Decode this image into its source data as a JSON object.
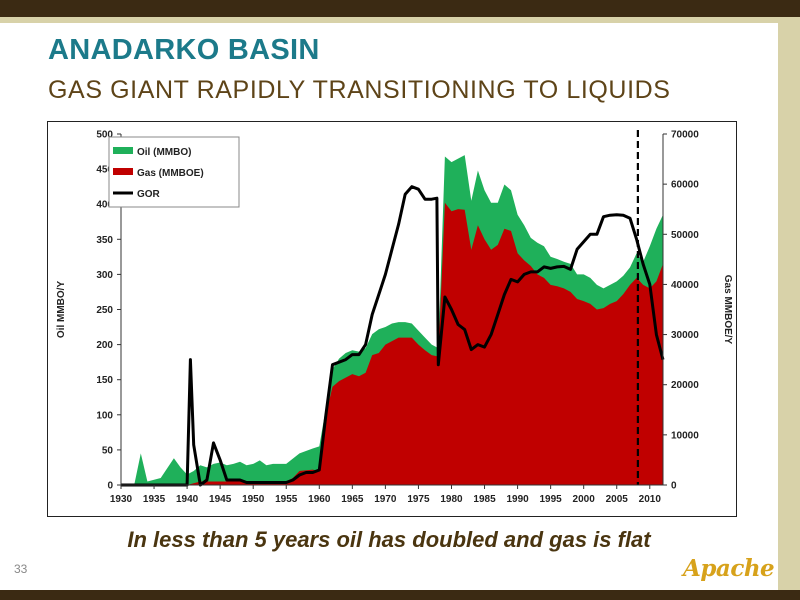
{
  "slide": {
    "title": "ANADARKO BASIN",
    "subtitle": "GAS GIANT RAPIDLY TRANSITIONING TO LIQUIDS",
    "caption": "In less than 5 years oil has doubled and gas is flat",
    "page_number": "33",
    "logo_text": "Apache"
  },
  "colors": {
    "title": "#1c7a8a",
    "subtitle": "#5e4418",
    "oil": "#1fb05a",
    "gas": "#c00000",
    "gor": "#000000",
    "dark_bar": "#3b2a13",
    "light_band": "#d8d2a9",
    "logo": "#d7a21b"
  },
  "chart_data": {
    "type": "area",
    "ylabel": "Oil MMBO/Y",
    "y2label": "Gas MMBOE/Y",
    "xlim": [
      1930,
      2012
    ],
    "ylim": [
      0,
      500
    ],
    "y2lim": [
      0,
      70000
    ],
    "xticks": [
      1930,
      1935,
      1940,
      1945,
      1950,
      1955,
      1960,
      1965,
      1970,
      1975,
      1980,
      1985,
      1990,
      1995,
      2000,
      2005,
      2010
    ],
    "yticks": [
      0,
      50,
      100,
      150,
      200,
      250,
      300,
      350,
      400,
      450,
      500
    ],
    "y2ticks": [
      0,
      10000,
      20000,
      30000,
      40000,
      50000,
      60000,
      70000
    ],
    "legend_position": "top-left",
    "grid": false,
    "vertical_marker": {
      "x": 2008.2,
      "style": "dashed"
    },
    "series": [
      {
        "name": "Oil (MMBO)",
        "axis": "left",
        "points": [
          [
            1930,
            0
          ],
          [
            1932,
            0
          ],
          [
            1933,
            45
          ],
          [
            1934,
            5
          ],
          [
            1936,
            10
          ],
          [
            1938,
            38
          ],
          [
            1939,
            25
          ],
          [
            1940,
            15
          ],
          [
            1941,
            20
          ],
          [
            1942,
            28
          ],
          [
            1943,
            25
          ],
          [
            1944,
            30
          ],
          [
            1945,
            32
          ],
          [
            1946,
            28
          ],
          [
            1947,
            30
          ],
          [
            1948,
            33
          ],
          [
            1949,
            28
          ],
          [
            1950,
            30
          ],
          [
            1951,
            35
          ],
          [
            1952,
            28
          ],
          [
            1953,
            30
          ],
          [
            1955,
            30
          ],
          [
            1957,
            45
          ],
          [
            1959,
            52
          ],
          [
            1960,
            55
          ],
          [
            1961,
            110
          ],
          [
            1962,
            165
          ],
          [
            1963,
            180
          ],
          [
            1964,
            188
          ],
          [
            1965,
            192
          ],
          [
            1966,
            190
          ],
          [
            1967,
            195
          ],
          [
            1968,
            215
          ],
          [
            1969,
            222
          ],
          [
            1970,
            225
          ],
          [
            1971,
            230
          ],
          [
            1972,
            232
          ],
          [
            1973,
            232
          ],
          [
            1974,
            230
          ],
          [
            1975,
            220
          ],
          [
            1976,
            210
          ],
          [
            1977,
            200
          ],
          [
            1978,
            195
          ],
          [
            1979,
            468
          ],
          [
            1980,
            460
          ],
          [
            1981,
            465
          ],
          [
            1982,
            470
          ],
          [
            1983,
            405
          ],
          [
            1984,
            448
          ],
          [
            1985,
            420
          ],
          [
            1986,
            402
          ],
          [
            1987,
            402
          ],
          [
            1988,
            428
          ],
          [
            1989,
            420
          ],
          [
            1990,
            385
          ],
          [
            1991,
            370
          ],
          [
            1992,
            352
          ],
          [
            1993,
            345
          ],
          [
            1994,
            340
          ],
          [
            1995,
            325
          ],
          [
            1996,
            322
          ],
          [
            1997,
            318
          ],
          [
            1998,
            315
          ],
          [
            1999,
            300
          ],
          [
            2000,
            300
          ],
          [
            2001,
            295
          ],
          [
            2002,
            285
          ],
          [
            2003,
            280
          ],
          [
            2004,
            285
          ],
          [
            2005,
            290
          ],
          [
            2006,
            298
          ],
          [
            2007,
            310
          ],
          [
            2008,
            330
          ],
          [
            2009,
            318
          ],
          [
            2010,
            340
          ],
          [
            2011,
            365
          ],
          [
            2012,
            385
          ]
        ]
      },
      {
        "name": "Gas (MMBOE)",
        "axis": "left",
        "points": [
          [
            1930,
            0
          ],
          [
            1940,
            0
          ],
          [
            1942,
            5
          ],
          [
            1944,
            5
          ],
          [
            1946,
            5
          ],
          [
            1950,
            5
          ],
          [
            1955,
            5
          ],
          [
            1956,
            10
          ],
          [
            1957,
            20
          ],
          [
            1959,
            22
          ],
          [
            1960,
            20
          ],
          [
            1961,
            100
          ],
          [
            1962,
            140
          ],
          [
            1963,
            148
          ],
          [
            1964,
            153
          ],
          [
            1965,
            158
          ],
          [
            1966,
            155
          ],
          [
            1967,
            160
          ],
          [
            1968,
            185
          ],
          [
            1969,
            188
          ],
          [
            1970,
            200
          ],
          [
            1971,
            205
          ],
          [
            1972,
            210
          ],
          [
            1973,
            210
          ],
          [
            1974,
            210
          ],
          [
            1975,
            200
          ],
          [
            1976,
            192
          ],
          [
            1977,
            185
          ],
          [
            1978,
            183
          ],
          [
            1979,
            402
          ],
          [
            1980,
            390
          ],
          [
            1981,
            393
          ],
          [
            1982,
            392
          ],
          [
            1983,
            335
          ],
          [
            1984,
            370
          ],
          [
            1985,
            350
          ],
          [
            1986,
            335
          ],
          [
            1987,
            342
          ],
          [
            1988,
            365
          ],
          [
            1989,
            362
          ],
          [
            1990,
            330
          ],
          [
            1991,
            320
          ],
          [
            1992,
            312
          ],
          [
            1993,
            300
          ],
          [
            1994,
            295
          ],
          [
            1995,
            285
          ],
          [
            1996,
            283
          ],
          [
            1997,
            280
          ],
          [
            1998,
            275
          ],
          [
            1999,
            265
          ],
          [
            2000,
            262
          ],
          [
            2001,
            258
          ],
          [
            2002,
            250
          ],
          [
            2003,
            252
          ],
          [
            2004,
            258
          ],
          [
            2005,
            262
          ],
          [
            2006,
            272
          ],
          [
            2007,
            285
          ],
          [
            2008,
            295
          ],
          [
            2009,
            285
          ],
          [
            2010,
            280
          ],
          [
            2011,
            290
          ],
          [
            2012,
            315
          ]
        ]
      },
      {
        "name": "GOR",
        "axis": "right",
        "points": [
          [
            1930,
            0
          ],
          [
            1940,
            0
          ],
          [
            1940.5,
            25000
          ],
          [
            1941,
            8000
          ],
          [
            1942,
            0
          ],
          [
            1943,
            1000
          ],
          [
            1944,
            8400
          ],
          [
            1945,
            5000
          ],
          [
            1946,
            1000
          ],
          [
            1948,
            1000
          ],
          [
            1949,
            500
          ],
          [
            1955,
            500
          ],
          [
            1956,
            1000
          ],
          [
            1957,
            2000
          ],
          [
            1958,
            2500
          ],
          [
            1959,
            2500
          ],
          [
            1960,
            3000
          ],
          [
            1961,
            14000
          ],
          [
            1962,
            24000
          ],
          [
            1964,
            25000
          ],
          [
            1965,
            26000
          ],
          [
            1966,
            26000
          ],
          [
            1967,
            28000
          ],
          [
            1968,
            34000
          ],
          [
            1969,
            38000
          ],
          [
            1970,
            42000
          ],
          [
            1971,
            47000
          ],
          [
            1972,
            52000
          ],
          [
            1973,
            58000
          ],
          [
            1974,
            59500
          ],
          [
            1975,
            59000
          ],
          [
            1976,
            57000
          ],
          [
            1977,
            57000
          ],
          [
            1977.8,
            57200
          ],
          [
            1978,
            24000
          ],
          [
            1979,
            37500
          ],
          [
            1980,
            35000
          ],
          [
            1981,
            32000
          ],
          [
            1982,
            31000
          ],
          [
            1983,
            27000
          ],
          [
            1984,
            28000
          ],
          [
            1985,
            27500
          ],
          [
            1986,
            30000
          ],
          [
            1987,
            34000
          ],
          [
            1988,
            38000
          ],
          [
            1989,
            41000
          ],
          [
            1990,
            40500
          ],
          [
            1991,
            42000
          ],
          [
            1992,
            42500
          ],
          [
            1993,
            42500
          ],
          [
            1994,
            43500
          ],
          [
            1995,
            43200
          ],
          [
            1996,
            43500
          ],
          [
            1997,
            43600
          ],
          [
            1998,
            43000
          ],
          [
            1999,
            47000
          ],
          [
            2000,
            48500
          ],
          [
            2001,
            50000
          ],
          [
            2002,
            50000
          ],
          [
            2003,
            53500
          ],
          [
            2004,
            53800
          ],
          [
            2005,
            53900
          ],
          [
            2006,
            53800
          ],
          [
            2007,
            53200
          ],
          [
            2008,
            49000
          ],
          [
            2009,
            44000
          ],
          [
            2010,
            40000
          ],
          [
            2011,
            30000
          ],
          [
            2012,
            25000
          ]
        ]
      }
    ]
  }
}
